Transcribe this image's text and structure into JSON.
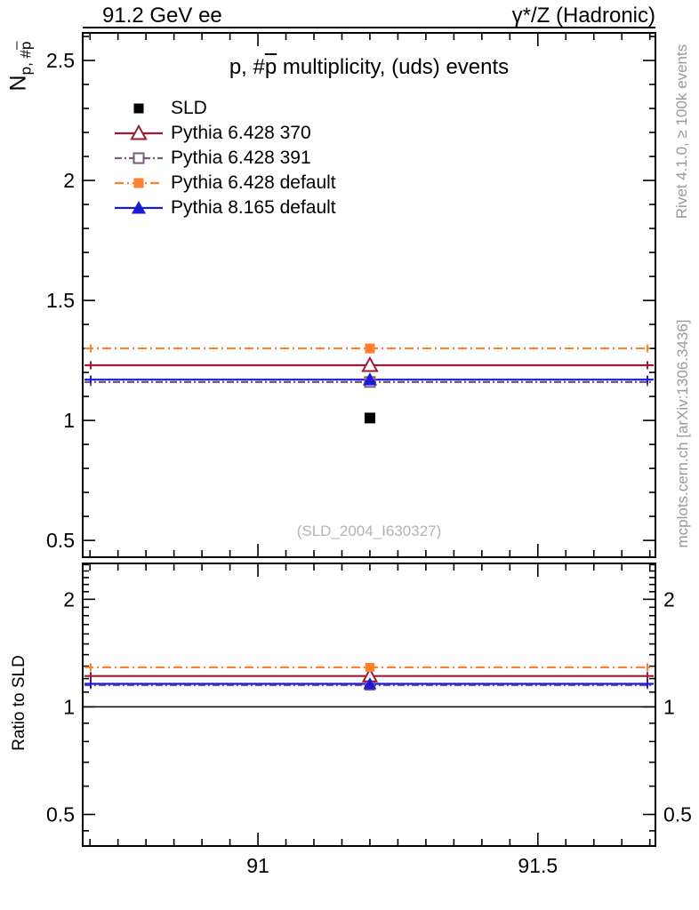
{
  "header": {
    "left": "91.2 GeV ee",
    "right": "γ*/Z (Hadronic)"
  },
  "side_text_top": "Rivet 4.1.0, ≥ 100k events",
  "side_text_bottom": "mcplots.cern.ch [arXiv:1306.3436]",
  "watermark": "(SLD_2004_I630327)",
  "main_panel": {
    "title_parts": {
      "prefix": "p, #",
      "pbar": "p",
      "suffix": " multiplicity, (uds) events"
    },
    "ylabel_parts": {
      "main": "N",
      "sub_prefix": "p, #",
      "sub_pbar": "p"
    }
  },
  "ratio_panel": {
    "ylabel": "Ratio to SLD"
  },
  "legend": {
    "items": [
      {
        "label": "SLD"
      },
      {
        "label": "Pythia 6.428 370"
      },
      {
        "label": "Pythia 6.428 391"
      },
      {
        "label": "Pythia 6.428 default"
      },
      {
        "label": "Pythia 8.165 default"
      }
    ]
  },
  "chart_data": {
    "type": "line",
    "title": "p, #pbar multiplicity, (uds) events",
    "xlabel": "",
    "ylabel": "N_p,#pbar",
    "grid": false,
    "legend_position": "top-left-inside",
    "xlim": [
      90.687,
      91.71
    ],
    "x_major_ticks": [
      91.0,
      91.5
    ],
    "x_major_labels": [
      "91",
      "91.5"
    ],
    "x_minor_start": 90.7,
    "x_minor_step": 0.05,
    "x_minor_end": 91.7,
    "main": {
      "yscale": "linear",
      "ylim": [
        0.43,
        2.615
      ],
      "y_major_ticks": [
        0.5,
        1.0,
        1.5,
        2.0,
        2.5
      ],
      "y_major_labels": [
        "0.5",
        "1",
        "1.5",
        "2",
        "2.5"
      ],
      "y_minor_start": 0.5,
      "y_minor_step": 0.1,
      "y_minor_end": 2.6
    },
    "ratio": {
      "yscale": "log",
      "ylim": [
        0.408,
        2.52
      ],
      "y_major_ticks": [
        0.5,
        1.0,
        2.0
      ],
      "y_major_labels": [
        "0.5",
        "1",
        "2"
      ],
      "y_minor_ticks": [
        0.45,
        0.6,
        0.7,
        0.8,
        0.9,
        1.1,
        1.2,
        1.3,
        1.4,
        1.5,
        1.6,
        1.7,
        1.8,
        1.9,
        2.1,
        2.2,
        2.3,
        2.4,
        2.5
      ],
      "reference_value": 1.0
    },
    "x_data": 91.2,
    "series": [
      {
        "name": "SLD",
        "kind": "data",
        "marker": "square-filled",
        "color": "#000000",
        "line": "none",
        "x": 91.2,
        "y": 1.01,
        "ratio": null
      },
      {
        "name": "Pythia 6.428 370",
        "kind": "mc",
        "marker": "triangle-open",
        "color": "#9e1b32",
        "line": "solid",
        "x": 91.2,
        "y": 1.23,
        "ratio": 1.22
      },
      {
        "name": "Pythia 6.428 391",
        "kind": "mc",
        "marker": "square-open",
        "color": "#7d5a7d",
        "line": "dashdot",
        "x": 91.2,
        "y": 1.16,
        "ratio": 1.15
      },
      {
        "name": "Pythia 6.428 default",
        "kind": "mc",
        "marker": "square-filled",
        "color": "#ff7f2e",
        "line": "dashdot",
        "x": 91.2,
        "y": 1.3,
        "ratio": 1.29
      },
      {
        "name": "Pythia 8.165 default",
        "kind": "mc",
        "marker": "triangle-filled",
        "color": "#1a1ad9",
        "line": "solid",
        "x": 91.2,
        "y": 1.17,
        "ratio": 1.16
      }
    ],
    "colors": {
      "sld": "#000000",
      "pythia6_370": "#9e1b32",
      "pythia6_391": "#7d5a7d",
      "pythia6_default": "#ff7f2e",
      "pythia8_default": "#1a1ad9",
      "frame": "#000000",
      "side_text": "#999999",
      "watermark": "#b3b3b3"
    }
  }
}
